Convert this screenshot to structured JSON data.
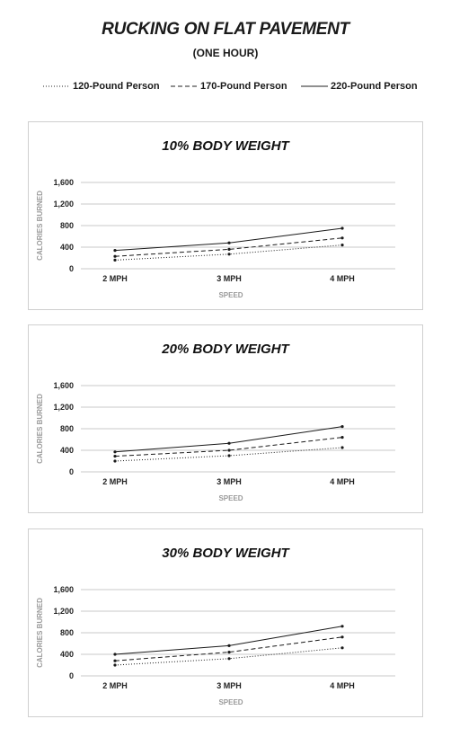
{
  "header": {
    "title": "RUCKING ON FLAT PAVEMENT",
    "subtitle": "(ONE HOUR)"
  },
  "legend": [
    {
      "label": "120-Pound Person",
      "style": "dotted"
    },
    {
      "label": "170-Pound Person",
      "style": "dashed"
    },
    {
      "label": "220-Pound Person",
      "style": "solid"
    }
  ],
  "chart_data": [
    {
      "type": "line",
      "title": "10% BODY WEIGHT",
      "xlabel": "SPEED",
      "ylabel": "CALORIES BURNED",
      "categories": [
        "2 MPH",
        "3 MPH",
        "4 MPH"
      ],
      "ylim": [
        0,
        1600
      ],
      "yticks": [
        "0",
        "400",
        "800",
        "1,200",
        "1,600"
      ],
      "ytick_values": [
        0,
        400,
        800,
        1200,
        1600
      ],
      "series": [
        {
          "name": "120-Pound Person",
          "style": "dotted",
          "values": [
            160,
            270,
            440
          ]
        },
        {
          "name": "170-Pound Person",
          "style": "dashed",
          "values": [
            230,
            360,
            570
          ]
        },
        {
          "name": "220-Pound Person",
          "style": "solid",
          "values": [
            340,
            480,
            750
          ]
        }
      ]
    },
    {
      "type": "line",
      "title": "20% BODY WEIGHT",
      "xlabel": "SPEED",
      "ylabel": "CALORIES BURNED",
      "categories": [
        "2 MPH",
        "3 MPH",
        "4 MPH"
      ],
      "ylim": [
        0,
        1600
      ],
      "yticks": [
        "0",
        "400",
        "800",
        "1,200",
        "1,600"
      ],
      "ytick_values": [
        0,
        400,
        800,
        1200,
        1600
      ],
      "series": [
        {
          "name": "120-Pound Person",
          "style": "dotted",
          "values": [
            200,
            300,
            450
          ]
        },
        {
          "name": "170-Pound Person",
          "style": "dashed",
          "values": [
            290,
            400,
            640
          ]
        },
        {
          "name": "220-Pound Person",
          "style": "solid",
          "values": [
            370,
            530,
            840
          ]
        }
      ]
    },
    {
      "type": "line",
      "title": "30% BODY WEIGHT",
      "xlabel": "SPEED",
      "ylabel": "CALORIES BURNED",
      "categories": [
        "2 MPH",
        "3 MPH",
        "4 MPH"
      ],
      "ylim": [
        0,
        1600
      ],
      "yticks": [
        "0",
        "400",
        "800",
        "1,200",
        "1,600"
      ],
      "ytick_values": [
        0,
        400,
        800,
        1200,
        1600
      ],
      "series": [
        {
          "name": "120-Pound Person",
          "style": "dotted",
          "values": [
            200,
            320,
            520
          ]
        },
        {
          "name": "170-Pound Person",
          "style": "dashed",
          "values": [
            280,
            440,
            720
          ]
        },
        {
          "name": "220-Pound Person",
          "style": "solid",
          "values": [
            400,
            560,
            920
          ]
        }
      ]
    }
  ]
}
